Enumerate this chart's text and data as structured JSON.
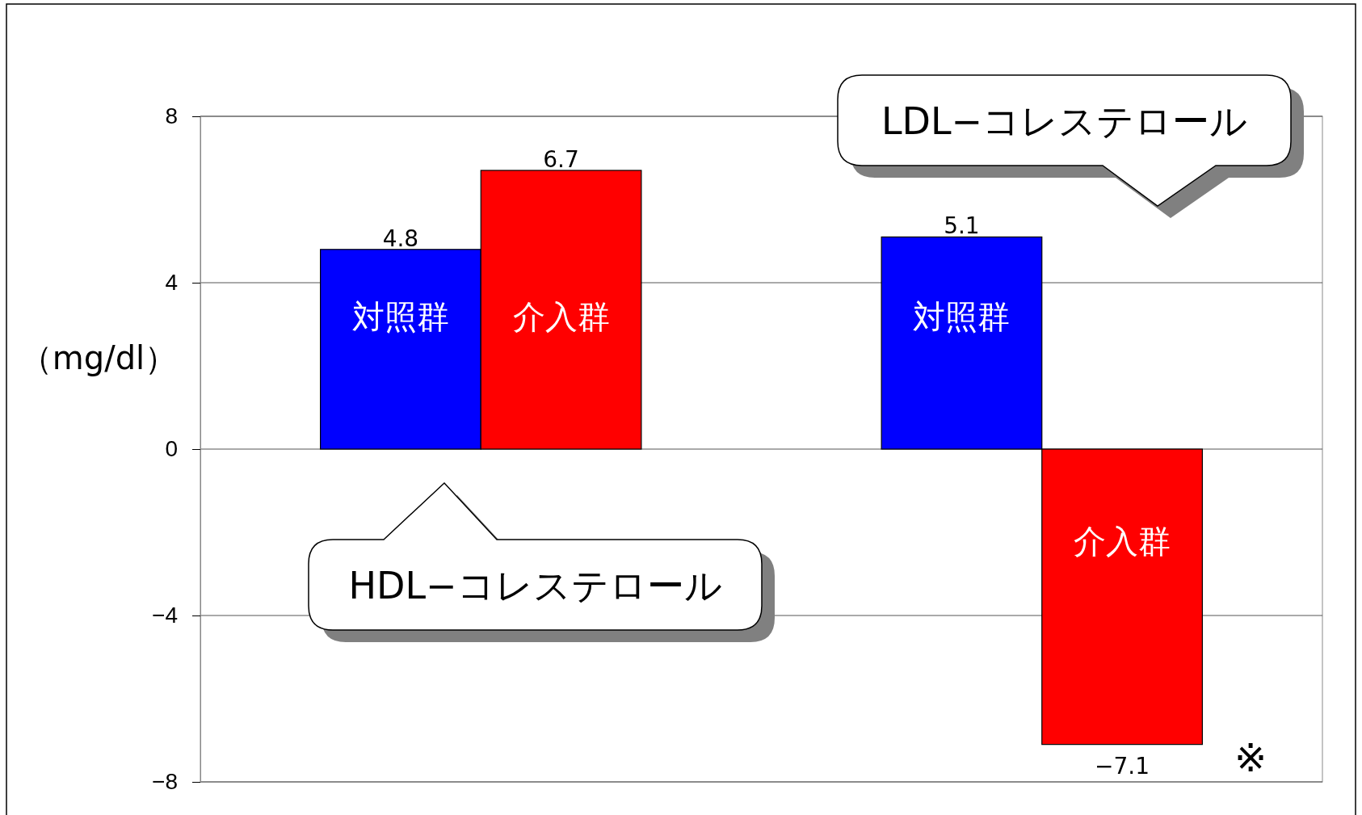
{
  "chart_data": {
    "type": "bar",
    "ylabel": "（mg/dl）",
    "categories": [
      null,
      null
    ],
    "series": [
      {
        "name": "対照群",
        "color": "#0000ff",
        "values": [
          4.8,
          5.1
        ],
        "value_labels": [
          "4.8",
          "5.1"
        ]
      },
      {
        "name": "介入群",
        "color": "#ff0000",
        "values": [
          6.7,
          -7.1
        ],
        "value_labels": [
          "6.7",
          "−7.1"
        ]
      }
    ],
    "ylim": [
      -8,
      8
    ],
    "yticks": [
      {
        "value": -8,
        "label": "−8"
      },
      {
        "value": -4,
        "label": "−4"
      },
      0,
      4,
      8
    ],
    "grid": "y",
    "legend": false,
    "annotations": [
      "HDL−コレステロール",
      "LDL−コレステロール",
      "※"
    ]
  }
}
